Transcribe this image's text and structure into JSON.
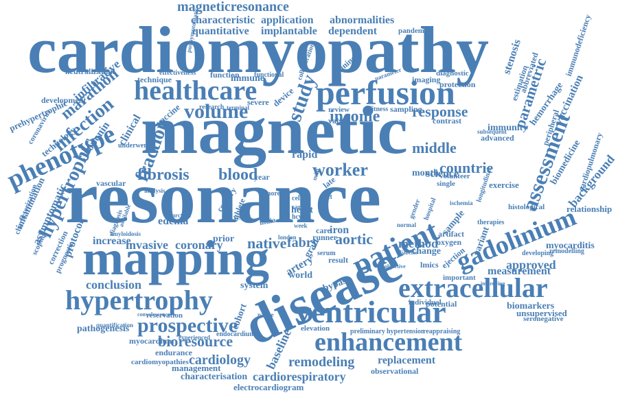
{
  "word_color": "#4a7fb5",
  "words": [
    {
      "text": "cardiomyopathy"
    },
    {
      "text": "magnetic"
    },
    {
      "text": "resonance"
    },
    {
      "text": "mapping"
    },
    {
      "text": "disease"
    },
    {
      "text": "perfusion"
    },
    {
      "text": "healthcare"
    },
    {
      "text": "hypertrophy"
    },
    {
      "text": "ventricular"
    },
    {
      "text": "extracellular"
    },
    {
      "text": "enhancement"
    },
    {
      "text": "patient"
    },
    {
      "text": "gadolinium"
    },
    {
      "text": "phenotype"
    },
    {
      "text": "magneticresonance"
    },
    {
      "text": "volume"
    },
    {
      "text": "study"
    },
    {
      "text": "prospective"
    },
    {
      "text": "assessment"
    },
    {
      "text": "fibrosis"
    },
    {
      "text": "blood"
    },
    {
      "text": "worker"
    },
    {
      "text": "income"
    },
    {
      "text": "response"
    },
    {
      "text": "middle"
    },
    {
      "text": "countrie"
    },
    {
      "text": "infection"
    },
    {
      "text": "hypertrophic"
    },
    {
      "text": "marathon"
    },
    {
      "text": "fraction"
    },
    {
      "text": "bioresource"
    },
    {
      "text": "cardiology"
    },
    {
      "text": "remodeling"
    },
    {
      "text": "cardiorespiratory"
    },
    {
      "text": "replacement"
    },
    {
      "text": "conclusion"
    },
    {
      "text": "native"
    },
    {
      "text": "fabry"
    },
    {
      "text": "aortic"
    },
    {
      "text": "invasive"
    },
    {
      "text": "coronary"
    },
    {
      "text": "approved"
    },
    {
      "text": "measurement"
    },
    {
      "text": "myocarditis"
    },
    {
      "text": "parametric"
    },
    {
      "text": "background"
    },
    {
      "text": "characteristic"
    },
    {
      "text": "application"
    },
    {
      "text": "abnormalities"
    },
    {
      "text": "quantitative"
    },
    {
      "text": "implantable"
    },
    {
      "text": "dependent"
    },
    {
      "text": "infiltrative"
    },
    {
      "text": "prehypertrophic"
    },
    {
      "text": "development"
    },
    {
      "text": "troponin"
    },
    {
      "text": "clinical"
    },
    {
      "text": "protocol"
    },
    {
      "text": "asymptomatic"
    },
    {
      "text": "inflammation"
    },
    {
      "text": "characterization"
    },
    {
      "text": "pathogenesis"
    },
    {
      "text": "myocardium"
    },
    {
      "text": "endurance"
    },
    {
      "text": "cardiomyopathies"
    },
    {
      "text": "management"
    },
    {
      "text": "characterisation"
    },
    {
      "text": "electrocardiogram"
    },
    {
      "text": "baseline"
    },
    {
      "text": "observational"
    },
    {
      "text": "reservation"
    },
    {
      "text": "method"
    },
    {
      "text": "science"
    },
    {
      "text": "month"
    },
    {
      "text": "exercise"
    },
    {
      "text": "potential"
    },
    {
      "text": "biomarkers"
    },
    {
      "text": "unsupervised"
    },
    {
      "text": "seronegative"
    },
    {
      "text": "relationship"
    },
    {
      "text": "cardiopulmonary"
    },
    {
      "text": "biomedicine"
    },
    {
      "text": "vaccination"
    },
    {
      "text": "hemorrhage"
    },
    {
      "text": "immunodeficiency"
    },
    {
      "text": "pandemic"
    },
    {
      "text": "neutralization"
    },
    {
      "text": "technique"
    },
    {
      "text": "effectiveness"
    },
    {
      "text": "function"
    },
    {
      "text": "immune"
    },
    {
      "text": "training"
    },
    {
      "text": "imaging"
    },
    {
      "text": "protection"
    },
    {
      "text": "diagnostic"
    },
    {
      "text": "stenosis"
    },
    {
      "text": "estimation"
    },
    {
      "text": "review"
    },
    {
      "text": "valve"
    },
    {
      "text": "fitness"
    },
    {
      "text": "sampling"
    },
    {
      "text": "immunity"
    },
    {
      "text": "advanced"
    },
    {
      "text": "contrast"
    },
    {
      "text": "rapid"
    },
    {
      "text": "volunteer"
    },
    {
      "text": "single"
    },
    {
      "text": "technology"
    },
    {
      "text": "coronavirus"
    },
    {
      "text": "underwent"
    },
    {
      "text": "vascular"
    },
    {
      "text": "correction"
    },
    {
      "text": "prognostic"
    },
    {
      "text": "increase"
    },
    {
      "text": "edema"
    },
    {
      "text": "prior"
    },
    {
      "text": "cohort"
    },
    {
      "text": "system"
    },
    {
      "text": "heart"
    },
    {
      "text": "cell"
    },
    {
      "text": "iron"
    },
    {
      "text": "runner"
    },
    {
      "text": "result"
    },
    {
      "text": "graft"
    },
    {
      "text": "artery"
    },
    {
      "text": "bypass"
    },
    {
      "text": "change"
    },
    {
      "text": "ejection"
    },
    {
      "text": "oxygen"
    },
    {
      "text": "artifact"
    },
    {
      "text": "variant"
    },
    {
      "text": "sample"
    },
    {
      "text": "world"
    },
    {
      "text": "elevation"
    },
    {
      "text": "preliminary"
    },
    {
      "text": "hypertension"
    },
    {
      "text": "reappraising"
    },
    {
      "text": "individual"
    },
    {
      "text": "important"
    },
    {
      "text": "developing"
    },
    {
      "text": "remodelling"
    },
    {
      "text": "histological"
    },
    {
      "text": "year"
    },
    {
      "text": "vaccine"
    },
    {
      "text": "severe"
    },
    {
      "text": "device"
    },
    {
      "text": "research"
    },
    {
      "text": "quantification"
    },
    {
      "text": "experienced"
    },
    {
      "text": "endocardium"
    },
    {
      "text": "convalescence"
    },
    {
      "text": "parameter"
    },
    {
      "text": "abbreviated"
    },
    {
      "text": "peripheral"
    },
    {
      "text": "subsequent"
    },
    {
      "text": "therapies"
    },
    {
      "text": "longitudinal"
    },
    {
      "text": "lmics"
    },
    {
      "text": "serum"
    },
    {
      "text": "scoping"
    },
    {
      "text": "amyloidosis"
    },
    {
      "text": "diagnosis"
    },
    {
      "text": "available"
    },
    {
      "text": "analysis"
    },
    {
      "text": "native"
    },
    {
      "text": "care"
    },
    {
      "text": "left"
    },
    {
      "text": "more"
    },
    {
      "text": "country"
    },
    {
      "text": "athlete"
    },
    {
      "text": "visual"
    },
    {
      "text": "london"
    },
    {
      "text": "mild"
    },
    {
      "text": "late"
    },
    {
      "text": "india"
    },
    {
      "text": "terminal"
    },
    {
      "text": "functional"
    },
    {
      "text": "collaboration"
    },
    {
      "text": "postsymptomatic"
    },
    {
      "text": "ischemia"
    },
    {
      "text": "normal"
    },
    {
      "text": "week"
    },
    {
      "text": "sar"
    },
    {
      "text": "hcws"
    },
    {
      "text": "diabetes"
    },
    {
      "text": "objective"
    },
    {
      "text": "hospital"
    },
    {
      "text": "gender"
    },
    {
      "text": "improving"
    },
    {
      "text": "infarction"
    }
  ]
}
